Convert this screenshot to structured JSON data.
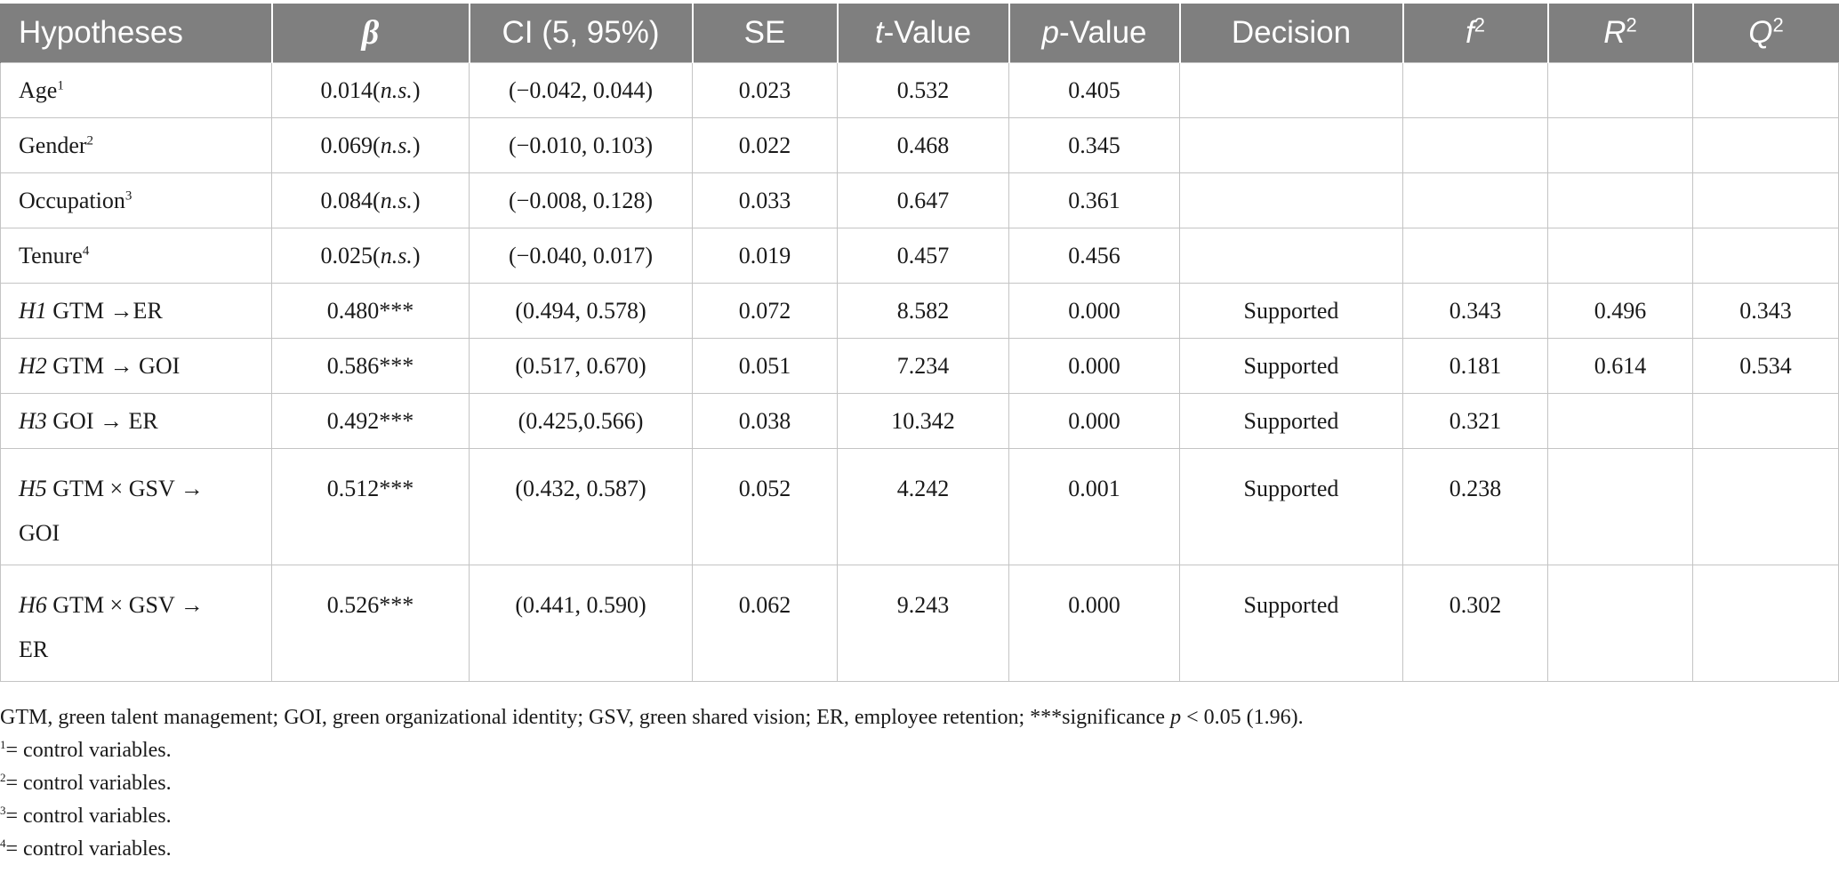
{
  "table": {
    "headers": {
      "hypotheses": "Hypotheses",
      "beta": "β",
      "ci": "CI (5, 95%)",
      "se": "SE",
      "t_italic": "t",
      "t_rest": "-Value",
      "p_italic": "p",
      "p_rest": "-Value",
      "decision": "Decision",
      "f_letter": "f",
      "f_sup": "2",
      "r_letter": "R",
      "r_sup": "2",
      "q_letter": "Q",
      "q_sup": "2"
    },
    "rows": [
      {
        "name": "Age",
        "sup": "1",
        "beta": "0.014(",
        "beta_it": "n.s.",
        "beta_close": ")",
        "ci": "(−0.042, 0.044)",
        "se": "0.023",
        "t": "0.532",
        "p": "0.405",
        "decision": "",
        "f2": "",
        "r2": "",
        "q2": ""
      },
      {
        "name": "Gender",
        "sup": "2",
        "beta": "0.069(",
        "beta_it": "n.s.",
        "beta_close": ")",
        "ci": "(−0.010, 0.103)",
        "se": "0.022",
        "t": "0.468",
        "p": "0.345",
        "decision": "",
        "f2": "",
        "r2": "",
        "q2": ""
      },
      {
        "name": "Occupation",
        "sup": "3",
        "beta": "0.084(",
        "beta_it": "n.s.",
        "beta_close": ")",
        "ci": "(−0.008, 0.128)",
        "se": "0.033",
        "t": "0.647",
        "p": "0.361",
        "decision": "",
        "f2": "",
        "r2": "",
        "q2": ""
      },
      {
        "name": "Tenure",
        "sup": "4",
        "beta": "0.025(",
        "beta_it": "n.s.",
        "beta_close": ")",
        "ci": "(−0.040, 0.017)",
        "se": "0.019",
        "t": "0.457",
        "p": "0.456",
        "decision": "",
        "f2": "",
        "r2": "",
        "q2": ""
      },
      {
        "h": "H1",
        "name": " GTM →ER",
        "beta": "0.480***",
        "ci": "(0.494, 0.578)",
        "se": "0.072",
        "t": "8.582",
        "p": "0.000",
        "decision": "Supported",
        "f2": "0.343",
        "r2": "0.496",
        "q2": "0.343"
      },
      {
        "h": "H2",
        "name": " GTM → GOI",
        "beta": "0.586***",
        "ci": "(0.517, 0.670)",
        "se": "0.051",
        "t": "7.234",
        "p": "0.000",
        "decision": "Supported",
        "f2": "0.181",
        "r2": "0.614",
        "q2": "0.534"
      },
      {
        "h": "H3",
        "name": " GOI → ER",
        "beta": "0.492***",
        "ci": "(0.425,0.566)",
        "se": "0.038",
        "t": "10.342",
        "p": "0.000",
        "decision": "Supported",
        "f2": "0.321",
        "r2": "",
        "q2": ""
      },
      {
        "h": "H5",
        "name": " GTM × GSV →",
        "name2": "GOI",
        "beta": "0.512***",
        "ci": "(0.432, 0.587)",
        "se": "0.052",
        "t": "4.242",
        "p": "0.001",
        "decision": "Supported",
        "f2": "0.238",
        "r2": "",
        "q2": ""
      },
      {
        "h": "H6",
        "name": " GTM × GSV →",
        "name2": "ER",
        "beta": "0.526***",
        "ci": "(0.441, 0.590)",
        "se": "0.062",
        "t": "9.243",
        "p": "0.000",
        "decision": "Supported",
        "f2": "0.302",
        "r2": "",
        "q2": ""
      }
    ]
  },
  "notes": {
    "abbrev_text": "GTM, green talent management; GOI, green organizational identity; GSV, green shared vision; ER, employee retention; ***significance ",
    "abbrev_p": "p",
    "abbrev_end": " < 0.05 (1.96).",
    "footnotes": [
      {
        "sup": "1",
        "text": "= control variables."
      },
      {
        "sup": "2",
        "text": "= control variables."
      },
      {
        "sup": "3",
        "text": "= control variables."
      },
      {
        "sup": "4",
        "text": "= control variables."
      }
    ]
  }
}
